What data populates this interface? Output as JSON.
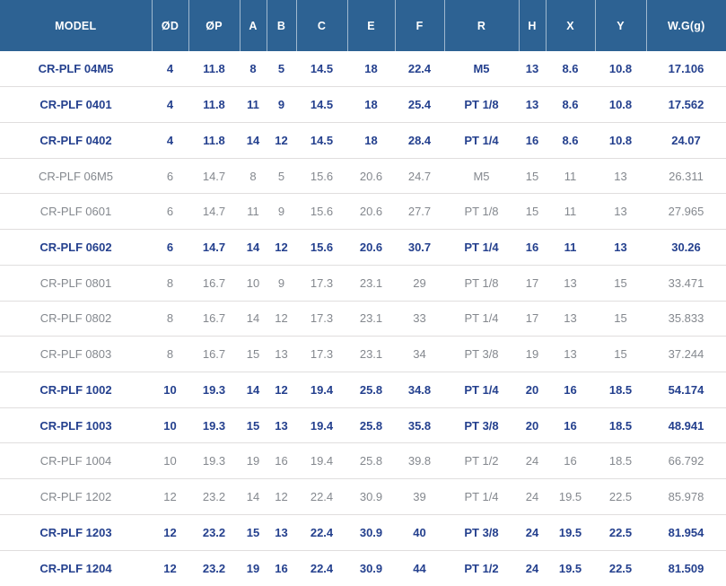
{
  "colors": {
    "header_bg": "#2d6293",
    "header_text": "#ffffff",
    "header_divider": "#9fb8cf",
    "emphasized_row_text": "#24408e",
    "muted_row_text": "#84888e",
    "row_border": "#e0dede",
    "row_bg": "#ffffff"
  },
  "chart_data": {
    "type": "table",
    "columns": [
      "MODEL",
      "ØD",
      "ØP",
      "A",
      "B",
      "C",
      "E",
      "F",
      "R",
      "H",
      "X",
      "Y",
      "W.G(g)"
    ],
    "rows": [
      {
        "model": "CR-PLF 04M5",
        "values": [
          "4",
          "11.8",
          "8",
          "5",
          "14.5",
          "18",
          "22.4",
          "M5",
          "13",
          "8.6",
          "10.8",
          "17.106"
        ],
        "emphasized": true
      },
      {
        "model": "CR-PLF 0401",
        "values": [
          "4",
          "11.8",
          "11",
          "9",
          "14.5",
          "18",
          "25.4",
          "PT 1/8",
          "13",
          "8.6",
          "10.8",
          "17.562"
        ],
        "emphasized": true
      },
      {
        "model": "CR-PLF 0402",
        "values": [
          "4",
          "11.8",
          "14",
          "12",
          "14.5",
          "18",
          "28.4",
          "PT 1/4",
          "16",
          "8.6",
          "10.8",
          "24.07"
        ],
        "emphasized": true
      },
      {
        "model": "CR-PLF 06M5",
        "values": [
          "6",
          "14.7",
          "8",
          "5",
          "15.6",
          "20.6",
          "24.7",
          "M5",
          "15",
          "11",
          "13",
          "26.311"
        ],
        "emphasized": false
      },
      {
        "model": "CR-PLF 0601",
        "values": [
          "6",
          "14.7",
          "11",
          "9",
          "15.6",
          "20.6",
          "27.7",
          "PT 1/8",
          "15",
          "11",
          "13",
          "27.965"
        ],
        "emphasized": false
      },
      {
        "model": "CR-PLF 0602",
        "values": [
          "6",
          "14.7",
          "14",
          "12",
          "15.6",
          "20.6",
          "30.7",
          "PT 1/4",
          "16",
          "11",
          "13",
          "30.26"
        ],
        "emphasized": true
      },
      {
        "model": "CR-PLF 0801",
        "values": [
          "8",
          "16.7",
          "10",
          "9",
          "17.3",
          "23.1",
          "29",
          "PT 1/8",
          "17",
          "13",
          "15",
          "33.471"
        ],
        "emphasized": false
      },
      {
        "model": "CR-PLF 0802",
        "values": [
          "8",
          "16.7",
          "14",
          "12",
          "17.3",
          "23.1",
          "33",
          "PT 1/4",
          "17",
          "13",
          "15",
          "35.833"
        ],
        "emphasized": false
      },
      {
        "model": "CR-PLF 0803",
        "values": [
          "8",
          "16.7",
          "15",
          "13",
          "17.3",
          "23.1",
          "34",
          "PT 3/8",
          "19",
          "13",
          "15",
          "37.244"
        ],
        "emphasized": false
      },
      {
        "model": "CR-PLF 1002",
        "values": [
          "10",
          "19.3",
          "14",
          "12",
          "19.4",
          "25.8",
          "34.8",
          "PT 1/4",
          "20",
          "16",
          "18.5",
          "54.174"
        ],
        "emphasized": true
      },
      {
        "model": "CR-PLF 1003",
        "values": [
          "10",
          "19.3",
          "15",
          "13",
          "19.4",
          "25.8",
          "35.8",
          "PT 3/8",
          "20",
          "16",
          "18.5",
          "48.941"
        ],
        "emphasized": true
      },
      {
        "model": "CR-PLF 1004",
        "values": [
          "10",
          "19.3",
          "19",
          "16",
          "19.4",
          "25.8",
          "39.8",
          "PT 1/2",
          "24",
          "16",
          "18.5",
          "66.792"
        ],
        "emphasized": false
      },
      {
        "model": "CR-PLF 1202",
        "values": [
          "12",
          "23.2",
          "14",
          "12",
          "22.4",
          "30.9",
          "39",
          "PT 1/4",
          "24",
          "19.5",
          "22.5",
          "85.978"
        ],
        "emphasized": false
      },
      {
        "model": "CR-PLF 1203",
        "values": [
          "12",
          "23.2",
          "15",
          "13",
          "22.4",
          "30.9",
          "40",
          "PT 3/8",
          "24",
          "19.5",
          "22.5",
          "81.954"
        ],
        "emphasized": true
      },
      {
        "model": "CR-PLF 1204",
        "values": [
          "12",
          "23.2",
          "19",
          "16",
          "22.4",
          "30.9",
          "44",
          "PT 1/2",
          "24",
          "19.5",
          "22.5",
          "81.509"
        ],
        "emphasized": true
      }
    ]
  }
}
